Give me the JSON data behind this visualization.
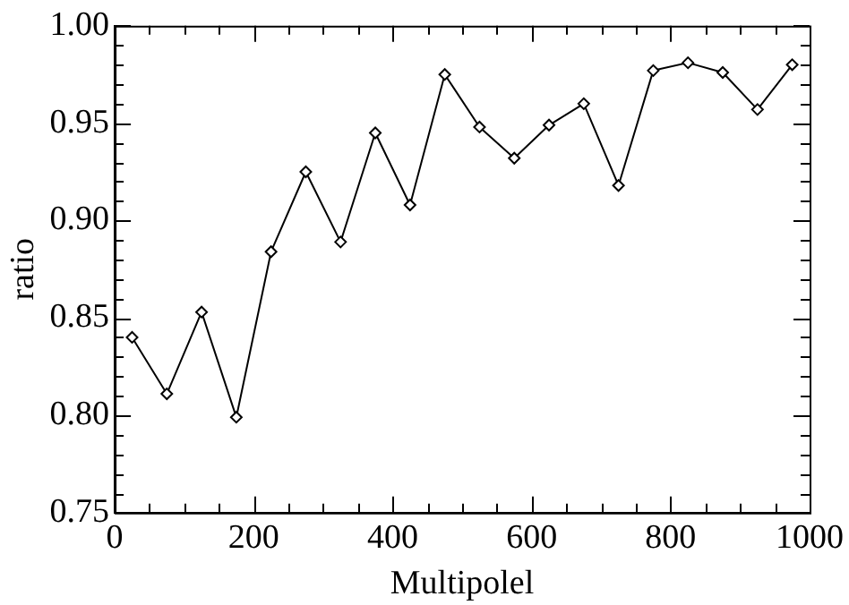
{
  "chart_data": {
    "type": "line",
    "xlabel": "Multipolel",
    "ylabel": "ratio",
    "x": [
      25,
      75,
      125,
      175,
      225,
      275,
      325,
      375,
      425,
      475,
      525,
      575,
      625,
      675,
      725,
      775,
      825,
      875,
      925,
      975
    ],
    "series": [
      {
        "color": "#000000",
        "values": [
          0.84,
          0.811,
          0.853,
          0.799,
          0.884,
          0.925,
          0.889,
          0.945,
          0.908,
          0.975,
          0.948,
          0.932,
          0.949,
          0.96,
          0.918,
          0.977,
          0.981,
          0.976,
          0.957,
          0.98
        ]
      }
    ],
    "xlim": [
      0,
      1000
    ],
    "xticks": [
      0,
      {
        "value": 50,
        "label": null
      },
      {
        "value": 100,
        "label": null
      },
      {
        "value": 150,
        "label": null
      },
      200,
      {
        "value": 250,
        "label": null
      },
      {
        "value": 300,
        "label": null
      },
      {
        "value": 350,
        "label": null
      },
      400,
      {
        "value": 450,
        "label": null
      },
      {
        "value": 500,
        "label": null
      },
      {
        "value": 550,
        "label": null
      },
      600,
      {
        "value": 650,
        "label": null
      },
      {
        "value": 700,
        "label": null
      },
      {
        "value": 750,
        "label": null
      },
      800,
      {
        "value": 850,
        "label": null
      },
      {
        "value": 900,
        "label": null
      },
      {
        "value": 950,
        "label": null
      },
      1000
    ],
    "ylim": [
      0.75,
      1.0
    ],
    "yticks": [
      {
        "value": 0.75,
        "label": "0.75"
      },
      {
        "value": 0.76,
        "label": null
      },
      {
        "value": 0.77,
        "label": null
      },
      {
        "value": 0.78,
        "label": null
      },
      {
        "value": 0.79,
        "label": null
      },
      {
        "value": 0.8,
        "label": "0.80"
      },
      {
        "value": 0.81,
        "label": null
      },
      {
        "value": 0.82,
        "label": null
      },
      {
        "value": 0.83,
        "label": null
      },
      {
        "value": 0.84,
        "label": null
      },
      {
        "value": 0.85,
        "label": "0.85"
      },
      {
        "value": 0.86,
        "label": null
      },
      {
        "value": 0.87,
        "label": null
      },
      {
        "value": 0.88,
        "label": null
      },
      {
        "value": 0.89,
        "label": null
      },
      {
        "value": 0.9,
        "label": "0.90"
      },
      {
        "value": 0.91,
        "label": null
      },
      {
        "value": 0.92,
        "label": null
      },
      {
        "value": 0.93,
        "label": null
      },
      {
        "value": 0.94,
        "label": null
      },
      {
        "value": 0.95,
        "label": "0.95"
      },
      {
        "value": 0.96,
        "label": null
      },
      {
        "value": 0.97,
        "label": null
      },
      {
        "value": 0.98,
        "label": null
      },
      {
        "value": 0.99,
        "label": null
      },
      {
        "value": 1.0,
        "label": "1.00"
      }
    ],
    "grid": false,
    "legend": false,
    "marker": "diamond",
    "line_style": "solid"
  }
}
